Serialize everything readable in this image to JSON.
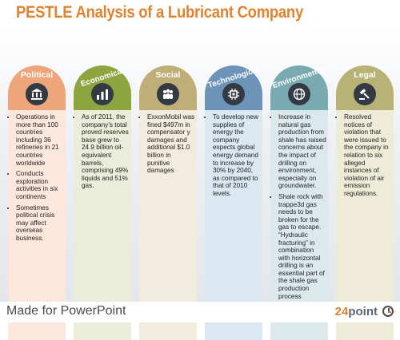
{
  "title": "PESTLE Analysis of a Lubricant Company",
  "footer": {
    "text": "Made for PowerPoint",
    "brand_number": "24",
    "brand_word": "point"
  },
  "colors": {
    "accent": "#e0832e"
  },
  "columns": [
    {
      "label": "Political",
      "icon": "government-building-icon",
      "arch_color": "#eea57a",
      "body_color": "#fce7dd",
      "items": [
        "Operations in more than 100 countries including 36 refineries in 21 countries worldwide",
        "Conducts exploration activities in six continents",
        "Sometimes political crisis may affect overseas business."
      ]
    },
    {
      "label": "Economical",
      "icon": "bar-chart-icon",
      "arch_color": "#8ea43e",
      "body_color": "#e9edd9",
      "items": [
        "As of 2011, the company’s total proved reserves base grew to 24.9 billion oil-equivalent barrels, comprising 49% liquids and 51% gas."
      ]
    },
    {
      "label": "Social",
      "icon": "people-icon",
      "arch_color": "#bfae77",
      "body_color": "#f1ecdd",
      "items": [
        "ExxonMobil was fined $497m in compensator y damages and additional $1.0 billion in punitive damages"
      ]
    },
    {
      "label": "Technological",
      "icon": "chip-icon",
      "arch_color": "#6e93b8",
      "body_color": "#dbe7f1",
      "items": [
        "To develop new supplies of energy the company expects global energy demand to increase by 30% by 2040, as compared to that of 2010 levels."
      ]
    },
    {
      "label": "Environmental",
      "icon": "globe-icon",
      "arch_color": "#79aab2",
      "body_color": "#dce9ec",
      "items": [
        "Increase in natural gas production from shale has raised concerns about the impact of drilling on environment, especially on groundwater.",
        "Shale rock with trappe3d gas needs to be broken for the gas to escape. “Hydraulic fracturing” in combination with horizontal drilling is an essential part of the shale gas production process"
      ]
    },
    {
      "label": "Legal",
      "icon": "gavel-icon",
      "arch_color": "#b7b276",
      "body_color": "#eeecd8",
      "items": [
        "Resolved notices of violation that were issued to the company in relation to six alleged instances of violation of air emission regulations."
      ]
    }
  ]
}
